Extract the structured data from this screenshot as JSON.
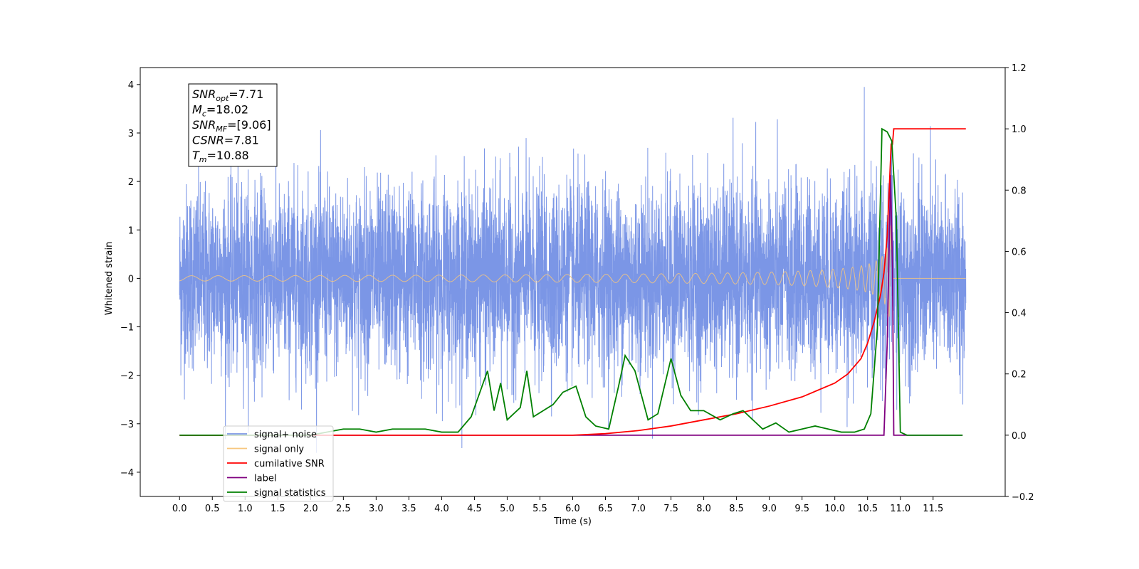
{
  "chart_data": {
    "type": "line",
    "xlabel": "Time (s)",
    "ylabel_left": "Whitened strain",
    "ylabel_right": "",
    "xlim": [
      -0.6,
      12.6
    ],
    "ylim_left": [
      -4.5,
      4.35
    ],
    "ylim_right": [
      -0.2,
      1.2
    ],
    "x_ticks": [
      "0.0",
      "0.5",
      "1.0",
      "1.5",
      "2.0",
      "2.5",
      "3.0",
      "3.5",
      "4.0",
      "4.5",
      "5.0",
      "5.5",
      "6.0",
      "6.5",
      "7.0",
      "7.5",
      "8.0",
      "8.5",
      "9.0",
      "9.5",
      "10.0",
      "10.5",
      "11.0",
      "11.5"
    ],
    "y_ticks_left": [
      "4",
      "3",
      "2",
      "1",
      "0",
      "−1",
      "−2",
      "−3",
      "−4"
    ],
    "y_ticks_right": [
      "1.2",
      "1.0",
      "0.8",
      "0.6",
      "0.4",
      "0.2",
      "0.0",
      "−0.2"
    ],
    "grid": false,
    "legend_position": "lower-left",
    "annotation": {
      "lines": [
        {
          "base": "SNR",
          "sub": "opt",
          "value": "=7.71"
        },
        {
          "base": "M",
          "sub": "c",
          "value": "=18.02"
        },
        {
          "base": "SNR",
          "sub": "MF",
          "value": "=[9.06]"
        },
        {
          "base": "CSNR",
          "sub": "",
          "value": "=7.81"
        },
        {
          "base": "T",
          "sub": "m",
          "value": "=10.88"
        }
      ]
    },
    "series": [
      {
        "name": "signal+ noise",
        "axis": "left",
        "color": "#7b96e6",
        "description_data": {
          "t_start": 0.0,
          "t_end": 12.0,
          "noise_sigma": 1.0,
          "peak_outlier": {
            "t": 10.45,
            "y": 3.95
          }
        }
      },
      {
        "name": "signal only",
        "axis": "left",
        "color": "#f7c77e",
        "description_data": {
          "t_start": 0.0,
          "t_merge": 10.88,
          "peak_amplitude": 2.4
        }
      },
      {
        "name": "cumilative SNR",
        "axis": "right",
        "color": "#ff0000",
        "x": [
          0.0,
          6.0,
          6.5,
          7.0,
          7.5,
          8.0,
          8.5,
          9.0,
          9.5,
          10.0,
          10.2,
          10.4,
          10.5,
          10.6,
          10.7,
          10.75,
          10.8,
          10.83,
          10.86,
          10.88,
          10.9,
          12.0
        ],
        "y": [
          0.0,
          0.0,
          0.005,
          0.015,
          0.03,
          0.05,
          0.07,
          0.095,
          0.125,
          0.17,
          0.2,
          0.25,
          0.3,
          0.37,
          0.46,
          0.53,
          0.65,
          0.8,
          0.95,
          0.95,
          1.0,
          1.0
        ]
      },
      {
        "name": "label",
        "axis": "right",
        "color": "#800080",
        "x": [
          0.0,
          10.75,
          10.8,
          10.85,
          10.88,
          10.9,
          10.92,
          11.95
        ],
        "y": [
          0.0,
          0.0,
          0.3,
          0.85,
          0.55,
          0.0,
          0.0,
          0.0
        ]
      },
      {
        "name": "signal statistics",
        "axis": "right",
        "color": "#008000",
        "x": [
          0.0,
          0.5,
          1.0,
          1.5,
          2.0,
          2.25,
          2.5,
          2.75,
          3.0,
          3.25,
          3.5,
          3.75,
          4.0,
          4.25,
          4.45,
          4.55,
          4.7,
          4.8,
          4.9,
          5.0,
          5.2,
          5.3,
          5.4,
          5.55,
          5.7,
          5.85,
          6.05,
          6.2,
          6.35,
          6.55,
          6.7,
          6.8,
          6.95,
          7.15,
          7.3,
          7.5,
          7.65,
          7.8,
          8.0,
          8.25,
          8.45,
          8.6,
          8.9,
          9.1,
          9.3,
          9.5,
          9.7,
          9.9,
          10.1,
          10.3,
          10.45,
          10.55,
          10.65,
          10.72,
          10.8,
          10.87,
          10.94,
          11.0,
          11.1,
          11.95
        ],
        "y": [
          0.0,
          0.0,
          0.0,
          0.0,
          0.0,
          0.01,
          0.02,
          0.02,
          0.01,
          0.02,
          0.02,
          0.02,
          0.01,
          0.01,
          0.06,
          0.12,
          0.21,
          0.08,
          0.17,
          0.05,
          0.09,
          0.21,
          0.06,
          0.08,
          0.1,
          0.14,
          0.16,
          0.06,
          0.03,
          0.02,
          0.16,
          0.26,
          0.21,
          0.05,
          0.07,
          0.25,
          0.13,
          0.08,
          0.08,
          0.05,
          0.07,
          0.08,
          0.02,
          0.04,
          0.01,
          0.02,
          0.03,
          0.02,
          0.01,
          0.01,
          0.02,
          0.07,
          0.35,
          1.0,
          0.99,
          0.96,
          0.7,
          0.01,
          0.0,
          0.0
        ]
      }
    ]
  }
}
